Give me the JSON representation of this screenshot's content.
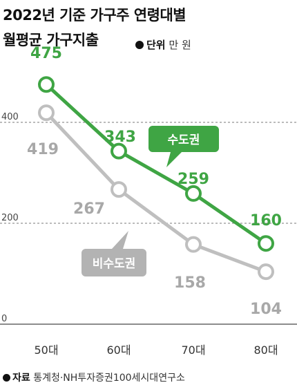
{
  "title_line1": "2022년 기준 가구주 연령대별",
  "title_line2": "월평균 가구지출",
  "unit": {
    "label": "단위",
    "value": "만 원"
  },
  "source": {
    "label": "자료",
    "text": "통계청·NH투자증권100세시대연구소"
  },
  "colors": {
    "capital": "#3fa544",
    "noncapital": "#bfbfbf",
    "axis": "#555555"
  },
  "chart_data": {
    "type": "line",
    "categories": [
      "50대",
      "60대",
      "70대",
      "80대"
    ],
    "yticks": [
      "0",
      "200",
      "400"
    ],
    "ylim": [
      0,
      520
    ],
    "grid": "dashed at 200 and 400",
    "series": [
      {
        "name": "수도권",
        "values": [
          475,
          343,
          259,
          160
        ],
        "labels": [
          "475",
          "343",
          "259",
          "160"
        ]
      },
      {
        "name": "비수도권",
        "values": [
          419,
          267,
          158,
          104
        ],
        "labels": [
          "419",
          "267",
          "158",
          "104"
        ]
      }
    ]
  }
}
